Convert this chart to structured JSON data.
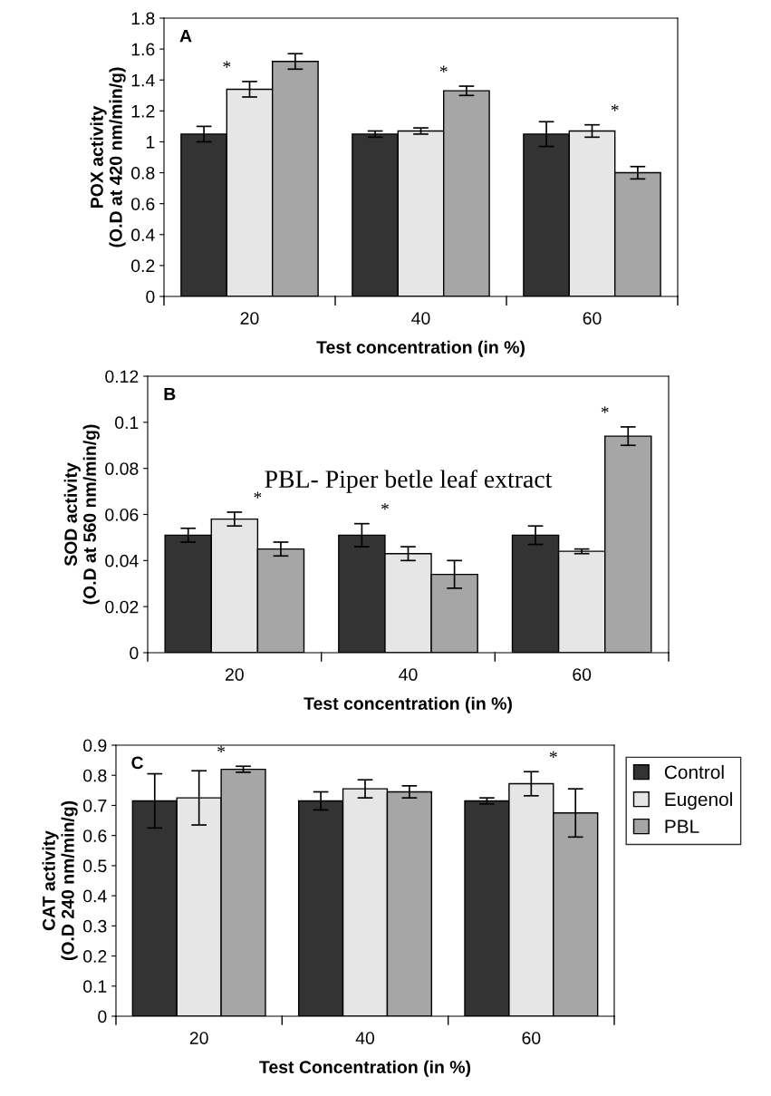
{
  "chart_data": [
    {
      "type": "bar",
      "categories": [
        "20",
        "40",
        "60"
      ],
      "xlabel": "Test concentration (in %)",
      "ylabel": "POX activity\n(O.D at 420 nm/min/g)",
      "ylim": [
        0,
        1.8
      ],
      "yticks": [
        0,
        0.2,
        0.4,
        0.6,
        0.8,
        1,
        1.2,
        1.4,
        1.6,
        1.8
      ],
      "grid": false,
      "legend": false,
      "series": [
        {
          "color": "#333333",
          "values": [
            1.05,
            1.05,
            1.05
          ],
          "errors": [
            0.05,
            0.02,
            0.08
          ]
        },
        {
          "color": "#e6e6e6",
          "values": [
            1.34,
            1.07,
            1.07
          ],
          "errors": [
            0.05,
            0.02,
            0.04
          ]
        },
        {
          "color": "#a6a6a6",
          "values": [
            1.52,
            1.33,
            0.8
          ],
          "errors": [
            0.05,
            0.03,
            0.04
          ]
        }
      ],
      "annotations": [
        "A",
        "*",
        "*",
        "*"
      ]
    },
    {
      "type": "bar",
      "categories": [
        "20",
        "40",
        "60"
      ],
      "xlabel": "Test concentration (in %)",
      "ylabel": "SOD activity\n(O.D at 560 nm/min/g)",
      "ylim": [
        0,
        0.12
      ],
      "yticks": [
        0,
        0.02,
        0.04,
        0.06,
        0.08,
        0.1,
        0.12
      ],
      "grid": false,
      "legend": false,
      "series": [
        {
          "color": "#333333",
          "values": [
            0.051,
            0.051,
            0.051
          ],
          "errors": [
            0.003,
            0.005,
            0.004
          ]
        },
        {
          "color": "#e6e6e6",
          "values": [
            0.058,
            0.043,
            0.044
          ],
          "errors": [
            0.003,
            0.003,
            0.001
          ]
        },
        {
          "color": "#a6a6a6",
          "values": [
            0.045,
            0.034,
            0.094
          ],
          "errors": [
            0.003,
            0.006,
            0.004
          ]
        }
      ],
      "annotations": [
        "B",
        "*",
        "*",
        "*",
        "PBL- Piper betle leaf extract"
      ]
    },
    {
      "type": "bar",
      "categories": [
        "20",
        "40",
        "60"
      ],
      "xlabel": "Test Concentration (in %)",
      "ylabel": "CAT activity\n(O.D 240 nm/min/g)",
      "ylim": [
        0,
        0.9
      ],
      "yticks": [
        0,
        0.1,
        0.2,
        0.3,
        0.4,
        0.5,
        0.6,
        0.7,
        0.8,
        0.9
      ],
      "grid": false,
      "legend": "right",
      "series": [
        {
          "name": "Control",
          "color": "#333333",
          "values": [
            0.715,
            0.715,
            0.715
          ],
          "errors": [
            0.09,
            0.03,
            0.01
          ]
        },
        {
          "name": "Eugenol",
          "color": "#e6e6e6",
          "values": [
            0.725,
            0.755,
            0.772
          ],
          "errors": [
            0.09,
            0.03,
            0.04
          ]
        },
        {
          "name": "PBL",
          "color": "#a6a6a6",
          "values": [
            0.82,
            0.745,
            0.675
          ],
          "errors": [
            0.01,
            0.02,
            0.08
          ]
        }
      ],
      "annotations": [
        "C",
        "*",
        "*"
      ]
    }
  ]
}
